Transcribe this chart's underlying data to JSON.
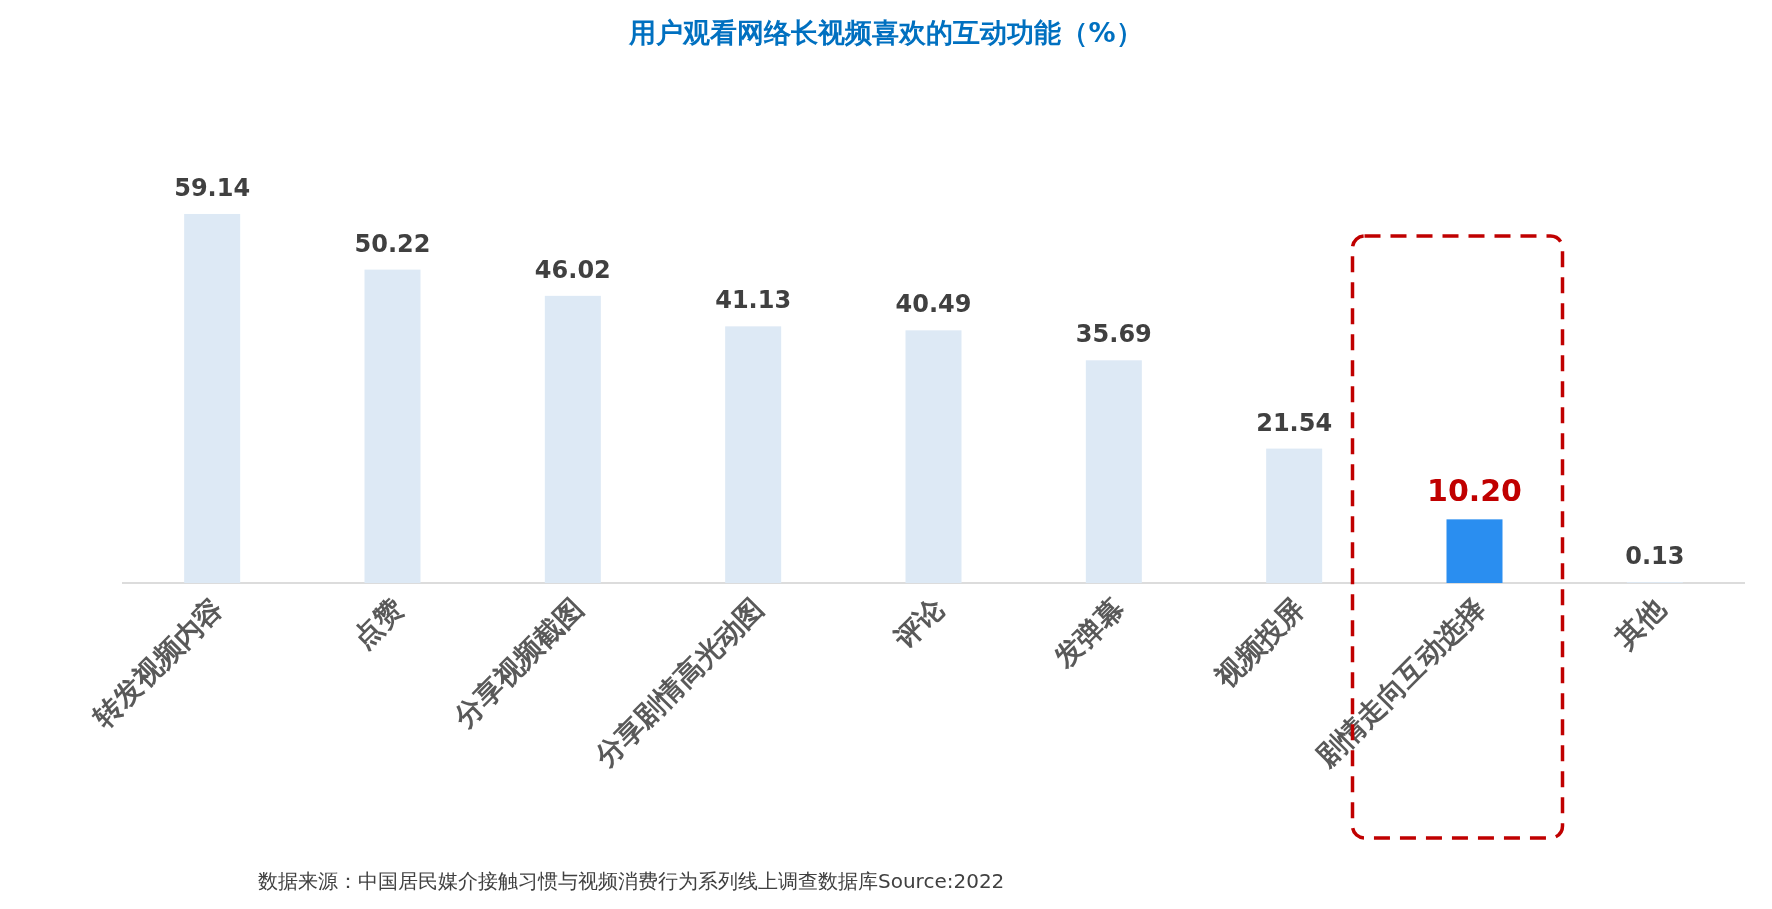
{
  "chart_data": {
    "type": "bar",
    "title": "用户观看网络长视频喜欢的互动功能（%）",
    "categories": [
      "转发视频内容",
      "点赞",
      "分享视频截图",
      "分享剧情高光动图",
      "评论",
      "发弹幕",
      "视频投屏",
      "剧情走向互动选择",
      "其他"
    ],
    "values": [
      59.14,
      50.22,
      46.02,
      41.13,
      40.49,
      35.69,
      21.54,
      10.2,
      0.13
    ],
    "colors": [
      "#dde9f5",
      "#dde9f5",
      "#dde9f5",
      "#dde9f5",
      "#dde9f5",
      "#dde9f5",
      "#dde9f5",
      "#2a8ef0",
      "#dde9f5"
    ],
    "value_labels": [
      "59.14",
      "50.22",
      "46.02",
      "41.13",
      "40.49",
      "35.69",
      "21.54",
      "10.20",
      "0.13"
    ],
    "annotations": [
      "数据来源：中国居民媒介接触习惯与视频消费行为系列线上调查数据库Source:2022"
    ]
  }
}
